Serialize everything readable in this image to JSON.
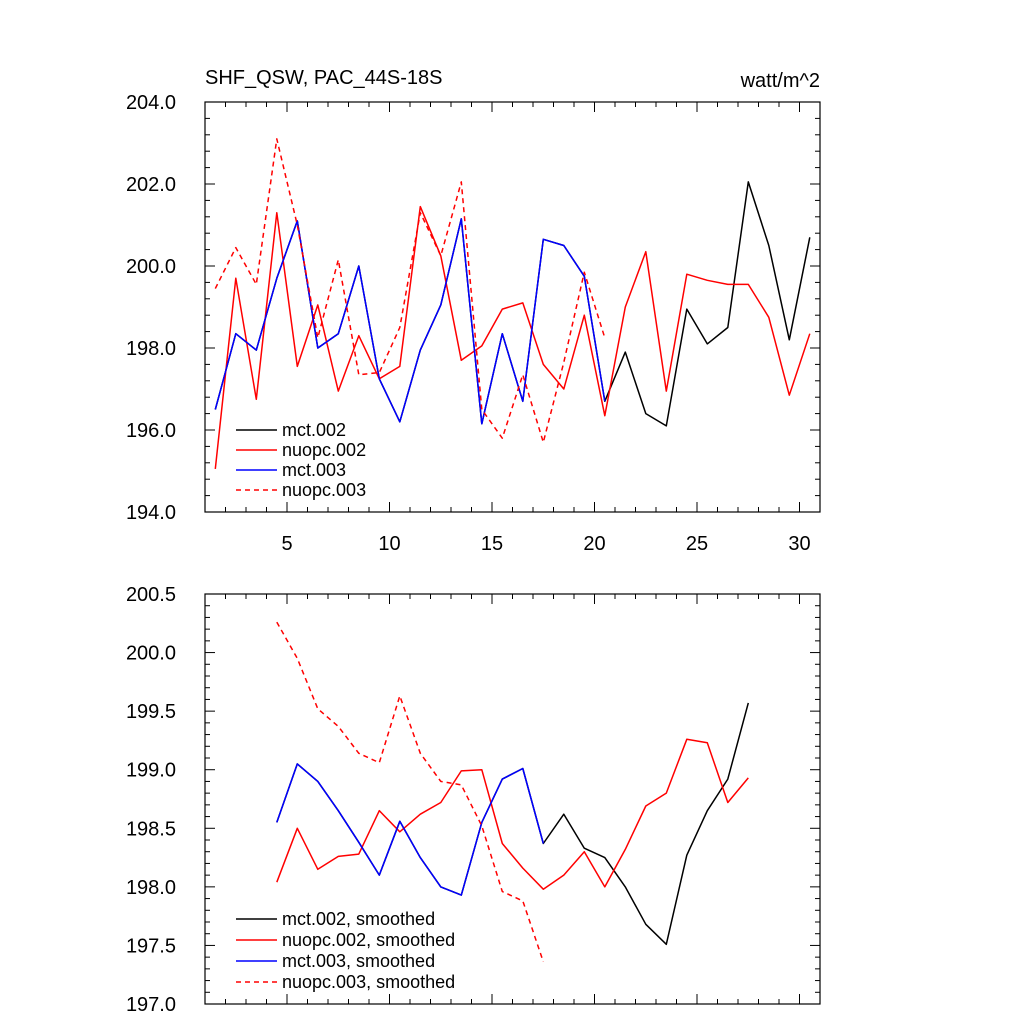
{
  "title_left": "SHF_QSW, PAC_44S-18S",
  "title_right": "watt/m^2",
  "chart_data": [
    {
      "type": "line",
      "name": "raw",
      "xlim": [
        1,
        31
      ],
      "ylim": [
        194,
        204
      ],
      "x_ticks": [
        5,
        10,
        15,
        20,
        25,
        30
      ],
      "x_tick_labels": [
        "5",
        "10",
        "15",
        "20",
        "25",
        "30"
      ],
      "y_ticks": [
        194,
        196,
        198,
        200,
        202,
        204
      ],
      "y_tick_labels": [
        "194.0",
        "196.0",
        "198.0",
        "200.0",
        "202.0",
        "204.0"
      ],
      "legend_position": "bottom-left",
      "series": [
        {
          "name": "mct.002",
          "color": "#000000",
          "dash": "solid",
          "x": [
            1.5,
            2.5,
            3.5,
            4.5,
            5.5,
            6.5,
            7.5,
            8.5,
            9.5,
            10.5,
            11.5,
            12.5,
            13.5,
            14.5,
            15.5,
            16.5,
            17.5,
            18.5,
            19.5,
            20.5,
            21.5,
            22.5,
            23.5,
            24.5,
            25.5,
            26.5,
            27.5,
            28.5,
            29.5,
            30.5
          ],
          "values": [
            196.5,
            198.35,
            197.95,
            199.7,
            201.1,
            198.0,
            198.35,
            200.0,
            197.25,
            196.2,
            197.95,
            199.05,
            201.15,
            196.15,
            198.35,
            196.7,
            200.65,
            200.5,
            199.75,
            196.7,
            197.9,
            196.4,
            196.1,
            198.95,
            198.1,
            198.5,
            202.05,
            200.5,
            198.2,
            200.7
          ]
        },
        {
          "name": "nuopc.002",
          "color": "#ff0000",
          "dash": "solid",
          "x": [
            1.5,
            2.5,
            3.5,
            4.5,
            5.5,
            6.5,
            7.5,
            8.5,
            9.5,
            10.5,
            11.5,
            12.5,
            13.5,
            14.5,
            15.5,
            16.5,
            17.5,
            18.5,
            19.5,
            20.5,
            21.5,
            22.5,
            23.5,
            24.5,
            25.5,
            26.5,
            27.5,
            28.5,
            29.5,
            30.5
          ],
          "values": [
            195.05,
            199.7,
            196.75,
            201.3,
            197.55,
            199.05,
            196.95,
            198.3,
            197.25,
            197.55,
            201.45,
            200.25,
            197.7,
            198.05,
            198.95,
            199.1,
            197.6,
            197.0,
            198.8,
            196.35,
            199.0,
            200.35,
            196.95,
            199.8,
            199.65,
            199.55,
            199.55,
            198.75,
            196.85,
            198.35
          ]
        },
        {
          "name": "mct.003",
          "color": "#0000ff",
          "dash": "solid",
          "x": [
            1.5,
            2.5,
            3.5,
            4.5,
            5.5,
            6.5,
            7.5,
            8.5,
            9.5,
            10.5,
            11.5,
            12.5,
            13.5,
            14.5,
            15.5,
            16.5,
            17.5,
            18.5,
            19.5,
            20.5
          ],
          "values": [
            196.5,
            198.35,
            197.95,
            199.7,
            201.1,
            198.0,
            198.35,
            200.0,
            197.25,
            196.2,
            197.95,
            199.05,
            201.15,
            196.15,
            198.35,
            196.7,
            200.65,
            200.5,
            199.75,
            196.7
          ]
        },
        {
          "name": "nuopc.003",
          "color": "#ff0000",
          "dash": "dashed",
          "x": [
            1.5,
            2.5,
            3.5,
            4.5,
            5.5,
            6.5,
            7.5,
            8.5,
            9.5,
            10.5,
            11.5,
            12.5,
            13.5,
            14.5,
            15.5,
            16.5,
            17.5,
            18.5,
            19.5,
            20.5
          ],
          "values": [
            199.45,
            200.45,
            199.55,
            203.1,
            201.0,
            198.25,
            200.15,
            197.35,
            197.4,
            198.5,
            201.3,
            200.25,
            202.05,
            196.5,
            195.8,
            197.35,
            195.7,
            197.65,
            199.85,
            198.25
          ]
        }
      ]
    },
    {
      "type": "line",
      "name": "smoothed",
      "xlim": [
        1,
        31
      ],
      "ylim": [
        197,
        200.5
      ],
      "x_ticks": [
        5,
        10,
        15,
        20,
        25,
        30
      ],
      "x_tick_labels": [],
      "y_ticks": [
        197,
        197.5,
        198,
        198.5,
        199,
        199.5,
        200,
        200.5
      ],
      "y_tick_labels": [
        "197.0",
        "197.5",
        "198.0",
        "198.5",
        "199.0",
        "199.5",
        "200.0",
        "200.5"
      ],
      "legend_position": "bottom-left",
      "series": [
        {
          "name": "mct.002, smoothed",
          "color": "#000000",
          "dash": "solid",
          "x": [
            4.5,
            5.5,
            6.5,
            7.5,
            8.5,
            9.5,
            10.5,
            11.5,
            12.5,
            13.5,
            14.5,
            15.5,
            16.5,
            17.5,
            18.5,
            19.5,
            20.5,
            21.5,
            22.5,
            23.5,
            24.5,
            25.5,
            26.5,
            27.5
          ],
          "values": [
            198.55,
            199.05,
            198.9,
            198.65,
            198.38,
            198.1,
            198.56,
            198.25,
            198.0,
            197.93,
            198.55,
            198.92,
            199.01,
            198.37,
            198.62,
            198.33,
            198.25,
            198.0,
            197.68,
            197.51,
            198.27,
            198.65,
            198.92,
            199.57
          ]
        },
        {
          "name": "nuopc.002, smoothed",
          "color": "#ff0000",
          "dash": "solid",
          "x": [
            4.5,
            5.5,
            6.5,
            7.5,
            8.5,
            9.5,
            10.5,
            11.5,
            12.5,
            13.5,
            14.5,
            15.5,
            16.5,
            17.5,
            18.5,
            19.5,
            20.5,
            21.5,
            22.5,
            23.5,
            24.5,
            25.5,
            26.5,
            27.5
          ],
          "values": [
            198.04,
            198.5,
            198.15,
            198.26,
            198.28,
            198.65,
            198.47,
            198.62,
            198.72,
            198.99,
            199.0,
            198.37,
            198.16,
            197.98,
            198.1,
            198.3,
            198.0,
            198.32,
            198.69,
            198.8,
            199.26,
            199.23,
            198.72,
            198.93
          ]
        },
        {
          "name": "mct.003, smoothed",
          "color": "#0000ff",
          "dash": "solid",
          "x": [
            4.5,
            5.5,
            6.5,
            7.5,
            8.5,
            9.5,
            10.5,
            11.5,
            12.5,
            13.5,
            14.5,
            15.5,
            16.5,
            17.5
          ],
          "values": [
            198.55,
            199.05,
            198.9,
            198.65,
            198.38,
            198.1,
            198.56,
            198.25,
            198.0,
            197.93,
            198.55,
            198.92,
            199.01,
            198.37
          ]
        },
        {
          "name": "nuopc.003, smoothed",
          "color": "#ff0000",
          "dash": "dashed",
          "x": [
            4.5,
            5.5,
            6.5,
            7.5,
            8.5,
            9.5,
            10.5,
            11.5,
            12.5,
            13.5,
            14.5,
            15.5,
            16.5,
            17.5
          ],
          "values": [
            200.26,
            199.95,
            199.52,
            199.37,
            199.14,
            199.06,
            199.63,
            199.14,
            198.9,
            198.87,
            198.52,
            197.96,
            197.88,
            197.36
          ]
        }
      ]
    }
  ]
}
